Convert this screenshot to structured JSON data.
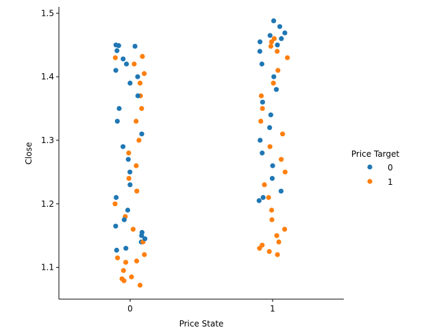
{
  "chart_data": {
    "type": "scatter",
    "style": "strip",
    "title": "",
    "xlabel": "Price State",
    "ylabel": "Close",
    "categories": [
      "0",
      "1"
    ],
    "ylim": [
      1.05,
      1.51
    ],
    "yticks": [
      1.1,
      1.2,
      1.3,
      1.4,
      1.5
    ],
    "ytick_labels": [
      "1.1",
      "1.2",
      "1.3",
      "1.4",
      "1.5"
    ],
    "grid": false,
    "legend": {
      "title": "Price Target",
      "placement": "right",
      "entries": [
        {
          "label": "0",
          "color": "#1f77b4"
        },
        {
          "label": "1",
          "color": "#ff7f0e"
        }
      ]
    },
    "series": [
      {
        "target": "0",
        "color": "#1f77b4",
        "points": [
          {
            "x": "0",
            "y": 1.45
          },
          {
            "x": "0",
            "y": 1.449
          },
          {
            "x": "0",
            "y": 1.448
          },
          {
            "x": "0",
            "y": 1.441
          },
          {
            "x": "0",
            "y": 1.428
          },
          {
            "x": "0",
            "y": 1.42
          },
          {
            "x": "0",
            "y": 1.41
          },
          {
            "x": "0",
            "y": 1.4
          },
          {
            "x": "0",
            "y": 1.39
          },
          {
            "x": "0",
            "y": 1.37
          },
          {
            "x": "0",
            "y": 1.35
          },
          {
            "x": "0",
            "y": 1.33
          },
          {
            "x": "0",
            "y": 1.31
          },
          {
            "x": "0",
            "y": 1.29
          },
          {
            "x": "0",
            "y": 1.27
          },
          {
            "x": "0",
            "y": 1.25
          },
          {
            "x": "0",
            "y": 1.23
          },
          {
            "x": "0",
            "y": 1.21
          },
          {
            "x": "0",
            "y": 1.19
          },
          {
            "x": "0",
            "y": 1.175
          },
          {
            "x": "0",
            "y": 1.165
          },
          {
            "x": "0",
            "y": 1.155
          },
          {
            "x": "0",
            "y": 1.15
          },
          {
            "x": "0",
            "y": 1.145
          },
          {
            "x": "0",
            "y": 1.14
          },
          {
            "x": "0",
            "y": 1.13
          },
          {
            "x": "0",
            "y": 1.127
          },
          {
            "x": "1",
            "y": 1.488
          },
          {
            "x": "1",
            "y": 1.479
          },
          {
            "x": "1",
            "y": 1.469
          },
          {
            "x": "1",
            "y": 1.465
          },
          {
            "x": "1",
            "y": 1.46
          },
          {
            "x": "1",
            "y": 1.455
          },
          {
            "x": "1",
            "y": 1.45
          },
          {
            "x": "1",
            "y": 1.44
          },
          {
            "x": "1",
            "y": 1.42
          },
          {
            "x": "1",
            "y": 1.4
          },
          {
            "x": "1",
            "y": 1.38
          },
          {
            "x": "1",
            "y": 1.36
          },
          {
            "x": "1",
            "y": 1.34
          },
          {
            "x": "1",
            "y": 1.32
          },
          {
            "x": "1",
            "y": 1.3
          },
          {
            "x": "1",
            "y": 1.28
          },
          {
            "x": "1",
            "y": 1.26
          },
          {
            "x": "1",
            "y": 1.24
          },
          {
            "x": "1",
            "y": 1.22
          },
          {
            "x": "1",
            "y": 1.21
          },
          {
            "x": "1",
            "y": 1.205
          }
        ]
      },
      {
        "target": "1",
        "color": "#ff7f0e",
        "points": [
          {
            "x": "0",
            "y": 1.432
          },
          {
            "x": "0",
            "y": 1.43
          },
          {
            "x": "0",
            "y": 1.42
          },
          {
            "x": "0",
            "y": 1.405
          },
          {
            "x": "0",
            "y": 1.39
          },
          {
            "x": "0",
            "y": 1.37
          },
          {
            "x": "0",
            "y": 1.35
          },
          {
            "x": "0",
            "y": 1.33
          },
          {
            "x": "0",
            "y": 1.3
          },
          {
            "x": "0",
            "y": 1.28
          },
          {
            "x": "0",
            "y": 1.26
          },
          {
            "x": "0",
            "y": 1.24
          },
          {
            "x": "0",
            "y": 1.22
          },
          {
            "x": "0",
            "y": 1.2
          },
          {
            "x": "0",
            "y": 1.18
          },
          {
            "x": "0",
            "y": 1.16
          },
          {
            "x": "0",
            "y": 1.14
          },
          {
            "x": "0",
            "y": 1.12
          },
          {
            "x": "0",
            "y": 1.115
          },
          {
            "x": "0",
            "y": 1.11
          },
          {
            "x": "0",
            "y": 1.108
          },
          {
            "x": "0",
            "y": 1.095
          },
          {
            "x": "0",
            "y": 1.085
          },
          {
            "x": "0",
            "y": 1.082
          },
          {
            "x": "0",
            "y": 1.079
          },
          {
            "x": "0",
            "y": 1.072
          },
          {
            "x": "1",
            "y": 1.46
          },
          {
            "x": "1",
            "y": 1.455
          },
          {
            "x": "1",
            "y": 1.448
          },
          {
            "x": "1",
            "y": 1.44
          },
          {
            "x": "1",
            "y": 1.43
          },
          {
            "x": "1",
            "y": 1.41
          },
          {
            "x": "1",
            "y": 1.39
          },
          {
            "x": "1",
            "y": 1.37
          },
          {
            "x": "1",
            "y": 1.35
          },
          {
            "x": "1",
            "y": 1.33
          },
          {
            "x": "1",
            "y": 1.31
          },
          {
            "x": "1",
            "y": 1.29
          },
          {
            "x": "1",
            "y": 1.27
          },
          {
            "x": "1",
            "y": 1.25
          },
          {
            "x": "1",
            "y": 1.23
          },
          {
            "x": "1",
            "y": 1.21
          },
          {
            "x": "1",
            "y": 1.19
          },
          {
            "x": "1",
            "y": 1.175
          },
          {
            "x": "1",
            "y": 1.16
          },
          {
            "x": "1",
            "y": 1.15
          },
          {
            "x": "1",
            "y": 1.14
          },
          {
            "x": "1",
            "y": 1.135
          },
          {
            "x": "1",
            "y": 1.13
          },
          {
            "x": "1",
            "y": 1.125
          },
          {
            "x": "1",
            "y": 1.12
          }
        ]
      }
    ]
  }
}
